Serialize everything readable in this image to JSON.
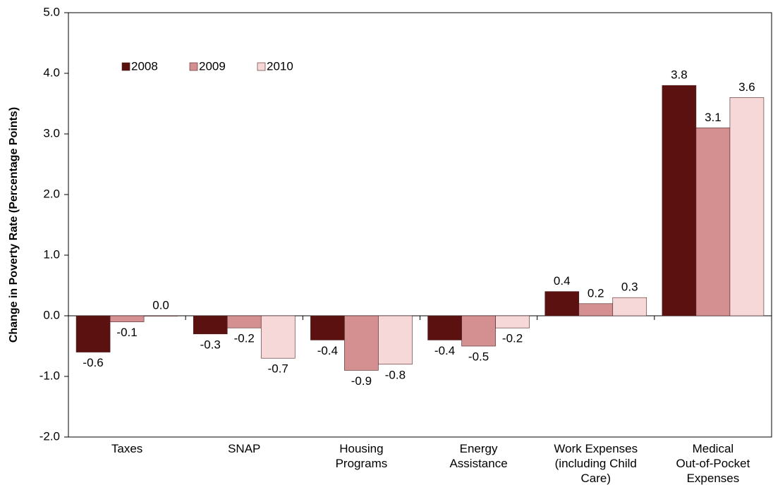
{
  "chart_data": {
    "type": "bar",
    "y_axis_label": "Change in Poverty Rate (Percentage Points)",
    "categories": [
      "Taxes",
      "SNAP",
      "Housing\nPrograms",
      "Energy\nAssistance",
      "Work Expenses\n(including Child\nCare)",
      "Medical\nOut-of-Pocket\nExpenses"
    ],
    "series": [
      {
        "name": "2008",
        "color": "#5c1111",
        "values": [
          -0.6,
          -0.3,
          -0.4,
          -0.4,
          0.4,
          3.8
        ],
        "value_labels": [
          "-0.6",
          "-0.3",
          "-0.4",
          "-0.4",
          "0.4",
          "3.8"
        ]
      },
      {
        "name": "2009",
        "color": "#d49090",
        "values": [
          -0.1,
          -0.2,
          -0.9,
          -0.5,
          0.2,
          3.1
        ],
        "value_labels": [
          "-0.1",
          "-0.2",
          "-0.9",
          "-0.5",
          "0.2",
          "3.1"
        ]
      },
      {
        "name": "2010",
        "color": "#f6d8d8",
        "values": [
          0,
          -0.7,
          -0.8,
          -0.2,
          0.3,
          3.6
        ],
        "value_labels": [
          "0.0",
          "-0.7",
          "-0.8",
          "-0.2",
          "0.3",
          "3.6"
        ]
      }
    ],
    "ylim": [
      -2,
      5
    ],
    "yticks": [
      {
        "value": -2,
        "label": "-2.0"
      },
      {
        "value": -1,
        "label": "-1.0"
      },
      {
        "value": 0,
        "label": "0.0"
      },
      {
        "value": 1,
        "label": "1.0"
      },
      {
        "value": 2,
        "label": "2.0"
      },
      {
        "value": 3,
        "label": "3.0"
      },
      {
        "value": 4,
        "label": "4.0"
      },
      {
        "value": 5,
        "label": "5.0"
      }
    ],
    "legend": "upper-left"
  }
}
